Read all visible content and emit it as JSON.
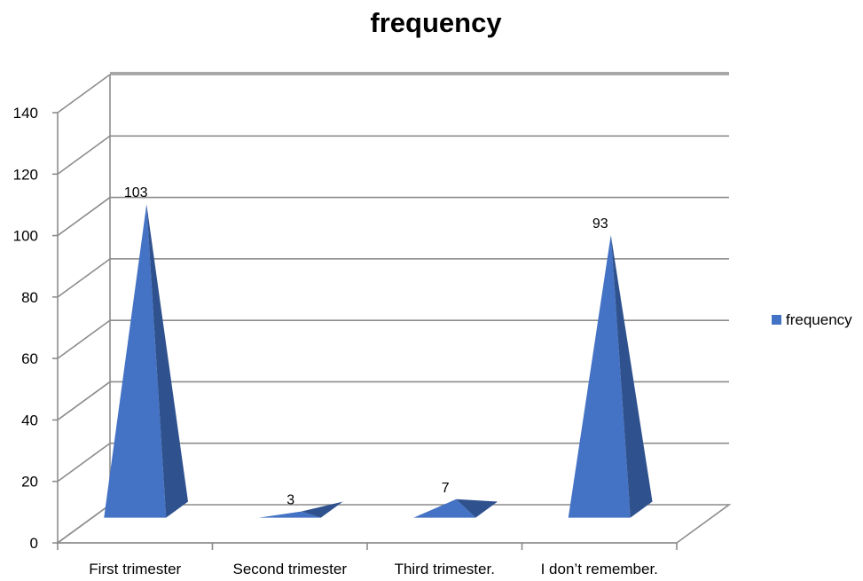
{
  "chart_data": {
    "type": "bar",
    "bar_shape": "3d-pyramid",
    "title": "frequency",
    "xlabel": "",
    "ylabel": "",
    "categories": [
      "First trimester",
      "Second trimester",
      "Third trimester.",
      "I don’t remember."
    ],
    "series": [
      {
        "name": "frequency",
        "values": [
          103,
          3,
          7,
          93
        ],
        "color": "#4472C4",
        "shade_color": "#2F528F"
      }
    ],
    "data_labels": [
      "103",
      "3",
      "7",
      "93"
    ],
    "y_ticks": [
      "0",
      "20",
      "40",
      "60",
      "80",
      "100",
      "120",
      "140"
    ],
    "ylim": [
      0,
      140
    ],
    "grid": true,
    "legend": {
      "position": "right",
      "entries": [
        "frequency"
      ]
    }
  }
}
